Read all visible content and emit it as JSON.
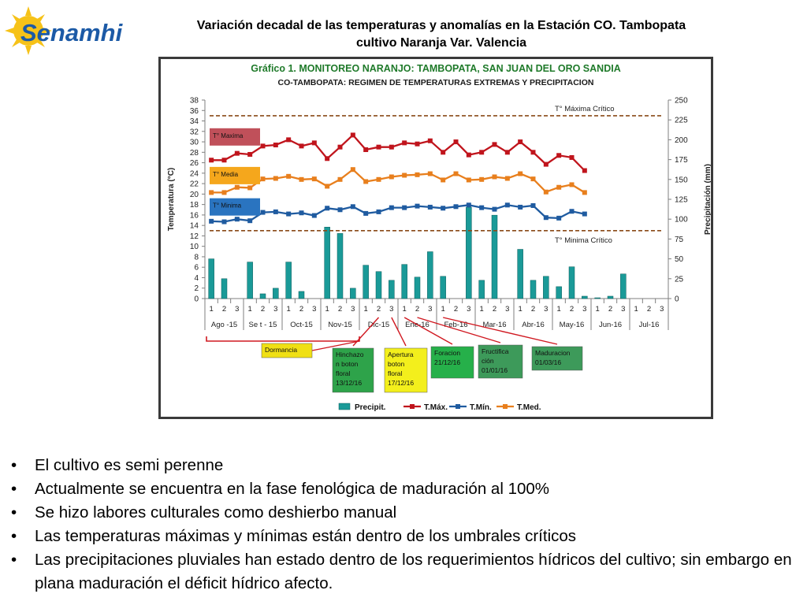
{
  "logo": {
    "text": "Senamhi"
  },
  "slide": {
    "title_line1": "Variación decadal de las temperaturas y anomalías en la Estación CO. Tambopata",
    "title_line2": "cultivo Naranja Var. Valencia"
  },
  "chart_data": {
    "type": "bar+line",
    "title": "Gráfico 1. MONITOREO NARANJO: TAMBOPATA, SAN JUAN DEL ORO SANDIA",
    "subtitle": "CO-TAMBOPATA: REGIMEN DE TEMPERATURAS EXTREMAS Y PRECIPITACION",
    "ylabel_left": "Temperatura (°C)",
    "ylabel_right": "Precipitación (mm)",
    "y_left": {
      "min": 0,
      "max": 38,
      "step": 2
    },
    "y_right": {
      "min": 0,
      "max": 250,
      "step": 25
    },
    "grid": false,
    "decades": [
      "1",
      "2",
      "3",
      "1",
      "2",
      "3",
      "1",
      "2",
      "3",
      "1",
      "2",
      "3",
      "1",
      "2",
      "3",
      "1",
      "2",
      "3",
      "1",
      "2",
      "3",
      "1",
      "2",
      "3",
      "1",
      "2",
      "3",
      "1",
      "2",
      "3",
      "1",
      "2",
      "3",
      "1",
      "2",
      "3"
    ],
    "months": [
      "Ago -15",
      "Se t - 15",
      "Oct-15",
      "Nov-15",
      "Dic-15",
      "Ene-16",
      "Feb-16",
      "Mar-16",
      "Abr-16",
      "May-16",
      "Jun-16",
      "Jul-16"
    ],
    "series": [
      {
        "name": "Precipit.",
        "kind": "bar",
        "axis": "right",
        "color": "#1a9a98",
        "values": [
          50,
          25,
          null,
          46,
          6,
          13,
          46,
          9,
          null,
          90,
          82,
          13,
          42,
          34,
          23,
          43,
          27,
          59,
          28,
          null,
          115,
          23,
          105,
          null,
          62,
          23,
          28,
          15,
          40,
          3,
          1,
          3,
          31,
          null,
          null,
          null
        ]
      },
      {
        "name": "T.Máx.",
        "kind": "line",
        "axis": "left",
        "color": "#c0141c",
        "values": [
          26.5,
          26.5,
          27.8,
          27.6,
          29.2,
          29.4,
          30.4,
          29.2,
          29.8,
          26.8,
          29,
          31.3,
          28.5,
          29,
          29,
          29.8,
          29.6,
          30.2,
          28,
          30,
          27.5,
          28,
          29.5,
          28,
          30,
          28,
          25.7,
          27.4,
          27,
          24.5,
          null,
          null,
          null,
          null,
          null,
          null
        ]
      },
      {
        "name": "T.Mín.",
        "kind": "line",
        "axis": "left",
        "color": "#1f5ba0",
        "values": [
          14.8,
          14.7,
          15.2,
          14.9,
          16.5,
          16.6,
          16.2,
          16.4,
          15.9,
          17.3,
          17,
          17.6,
          16.3,
          16.6,
          17.4,
          17.4,
          17.7,
          17.5,
          17.3,
          17.6,
          17.9,
          17.4,
          17.1,
          17.9,
          17.5,
          17.8,
          15.5,
          15.4,
          16.7,
          16.2,
          null,
          null,
          null,
          null,
          null,
          null
        ]
      },
      {
        "name": "T.Med.",
        "kind": "line",
        "axis": "left",
        "color": "#e87f1d",
        "values": [
          20.3,
          20.3,
          21.3,
          21.2,
          22.9,
          23,
          23.4,
          22.8,
          22.9,
          21.5,
          22.8,
          24.7,
          22.4,
          22.8,
          23.3,
          23.6,
          23.7,
          23.9,
          22.7,
          23.9,
          22.7,
          22.8,
          23.3,
          23,
          23.9,
          22.9,
          20.4,
          21.3,
          21.8,
          20.3,
          null,
          null,
          null,
          null,
          null,
          null
        ]
      }
    ],
    "thresholds": [
      {
        "label": "T° Máxima Crítico",
        "value": 35
      },
      {
        "label": "T° Minima Crítico",
        "value": 13
      }
    ],
    "legend_placement": "bottom",
    "stage_labels": [
      {
        "text": "T° Maxima",
        "color": "#c0505a"
      },
      {
        "text": "T° Media",
        "color": "#f5a71c"
      },
      {
        "text": "T° Minima",
        "color": "#2a74c0"
      }
    ],
    "phenology": [
      {
        "lines": [
          "Dormancia"
        ],
        "color": "#f0e014"
      },
      {
        "lines": [
          "Hinchazo",
          "n boton",
          "floral",
          "13/12/16"
        ],
        "color": "#2ea34a"
      },
      {
        "lines": [
          "Apertura",
          "boton",
          "floral",
          "17/12/16"
        ],
        "color": "#f3ef1c"
      },
      {
        "lines": [
          "Foracion",
          "21/12/16"
        ],
        "color": "#26b04a"
      },
      {
        "lines": [
          "Fructifica",
          "ción",
          "01/01/16"
        ],
        "color": "#3d9a5a"
      },
      {
        "lines": [
          "Maduracion",
          "01/03/16"
        ],
        "color": "#3d9a5a"
      }
    ]
  },
  "bullets": [
    "El cultivo es semi perenne",
    "Actualmente se encuentra en la fase fenológica de maduración al 100%",
    "Se hizo labores culturales como deshierbo manual",
    "Las temperaturas máximas y mínimas están dentro de los umbrales críticos",
    "Las precipitaciones pluviales han estado dentro de los requerimientos hídricos del cultivo; sin embargo en plana maduración el déficit hídrico afecto."
  ]
}
